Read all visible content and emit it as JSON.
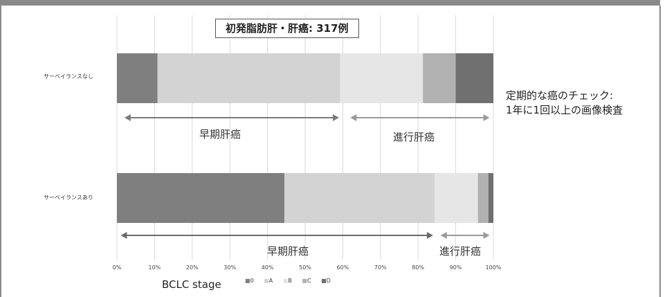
{
  "chart_data": {
    "type": "bar",
    "orientation": "horizontal",
    "stacked": true,
    "title": "初発脂肪肝・肝癌: 317例",
    "xlabel": "BCLC stage",
    "xlim": [
      0,
      100
    ],
    "xticks": [
      "0%",
      "10%",
      "20%",
      "30%",
      "40%",
      "50%",
      "60%",
      "70%",
      "80%",
      "90%",
      "100%"
    ],
    "grid": true,
    "legend": [
      "0",
      "A",
      "B",
      "C",
      "D"
    ],
    "legend_placement": "bottom",
    "colors": [
      "#7f7f7f",
      "#d3d3d3",
      "#e6e6e6",
      "#b1b1b1",
      "#707070"
    ],
    "categories": [
      "サーベイランスなし",
      "サーベイランスあり"
    ],
    "series": [
      {
        "name": "0",
        "values": [
          10.8,
          44.5
        ]
      },
      {
        "name": "A",
        "values": [
          48.5,
          39.9
        ]
      },
      {
        "name": "B",
        "values": [
          22.0,
          11.5
        ]
      },
      {
        "name": "C",
        "values": [
          8.7,
          2.8
        ]
      },
      {
        "name": "D",
        "values": [
          10.0,
          1.3
        ]
      }
    ]
  },
  "annotations": {
    "early_top": "早期肝癌",
    "advanced_top": "進行肝癌",
    "early_bottom": "早期肝癌",
    "advanced_bottom": "進行肝癌"
  },
  "annotation_ranges": {
    "early_top": [
      2,
      59
    ],
    "advanced_top": [
      62,
      99
    ],
    "early_bottom": [
      1,
      84
    ],
    "advanced_bottom": [
      86,
      99
    ]
  },
  "side_note": {
    "line1": "定期的な癌のチェック:",
    "line2": "1年に1回以上の画像検査"
  }
}
